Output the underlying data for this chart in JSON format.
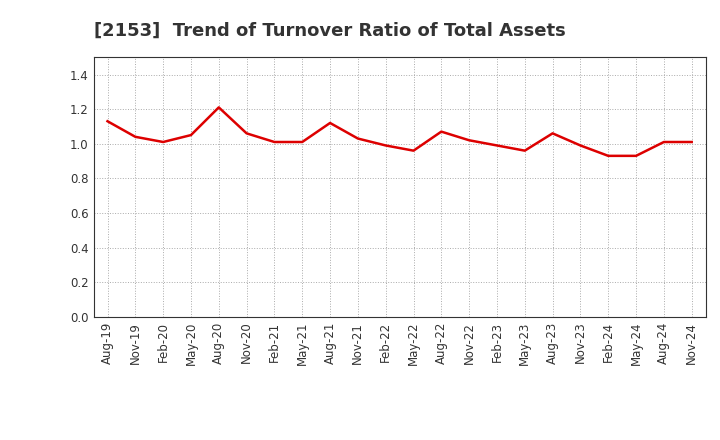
{
  "title": "[2153]  Trend of Turnover Ratio of Total Assets",
  "x_labels": [
    "Aug-19",
    "Nov-19",
    "Feb-20",
    "May-20",
    "Aug-20",
    "Nov-20",
    "Feb-21",
    "May-21",
    "Aug-21",
    "Nov-21",
    "Feb-22",
    "May-22",
    "Aug-22",
    "Nov-22",
    "Feb-23",
    "May-23",
    "Aug-23",
    "Nov-23",
    "Feb-24",
    "May-24",
    "Aug-24",
    "Nov-24"
  ],
  "y_values": [
    1.13,
    1.04,
    1.01,
    1.05,
    1.21,
    1.06,
    1.01,
    1.01,
    1.12,
    1.03,
    0.99,
    0.96,
    1.07,
    1.02,
    0.99,
    0.96,
    1.06,
    0.99,
    0.93,
    0.93,
    1.01,
    1.01
  ],
  "line_color": "#dd0000",
  "line_width": 1.8,
  "ylim": [
    0.0,
    1.5
  ],
  "yticks": [
    0.0,
    0.2,
    0.4,
    0.6,
    0.8,
    1.0,
    1.2,
    1.4
  ],
  "background_color": "#ffffff",
  "grid_color": "#aaaaaa",
  "title_fontsize": 13,
  "tick_fontsize": 8.5
}
